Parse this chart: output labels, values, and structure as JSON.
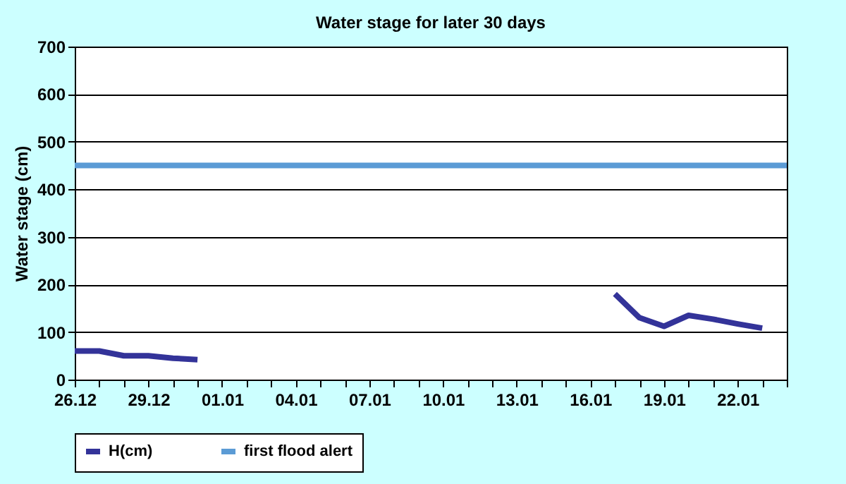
{
  "chart_data": {
    "type": "line",
    "title": "Water stage for later 30 days",
    "ylabel": "Water stage (cm)",
    "categories": [
      "26.12",
      null,
      null,
      "29.12",
      null,
      null,
      "01.01",
      null,
      null,
      "04.01",
      null,
      null,
      "07.01",
      null,
      null,
      "10.01",
      null,
      null,
      "13.01",
      null,
      null,
      "16.01",
      null,
      null,
      "19.01",
      null,
      null,
      "22.01",
      null,
      null
    ],
    "series": [
      {
        "name": "H(cm)",
        "color": "#333399",
        "values": [
          60,
          60,
          50,
          50,
          45,
          42,
          null,
          null,
          null,
          null,
          null,
          null,
          null,
          null,
          null,
          null,
          null,
          null,
          null,
          null,
          null,
          null,
          180,
          130,
          112,
          135,
          127,
          117,
          108,
          null
        ]
      },
      {
        "name": "first flood alert",
        "color": "#5b9bd5",
        "values": [
          450,
          450,
          450,
          450,
          450,
          450,
          450,
          450,
          450,
          450,
          450,
          450,
          450,
          450,
          450,
          450,
          450,
          450,
          450,
          450,
          450,
          450,
          450,
          450,
          450,
          450,
          450,
          450,
          450,
          450
        ]
      }
    ],
    "ylim": [
      0,
      700
    ],
    "yticks": [
      0,
      100,
      200,
      300,
      400,
      500,
      600,
      700
    ],
    "grid": "y",
    "legend": "bottom",
    "line_style": "solid",
    "marker": "none"
  }
}
